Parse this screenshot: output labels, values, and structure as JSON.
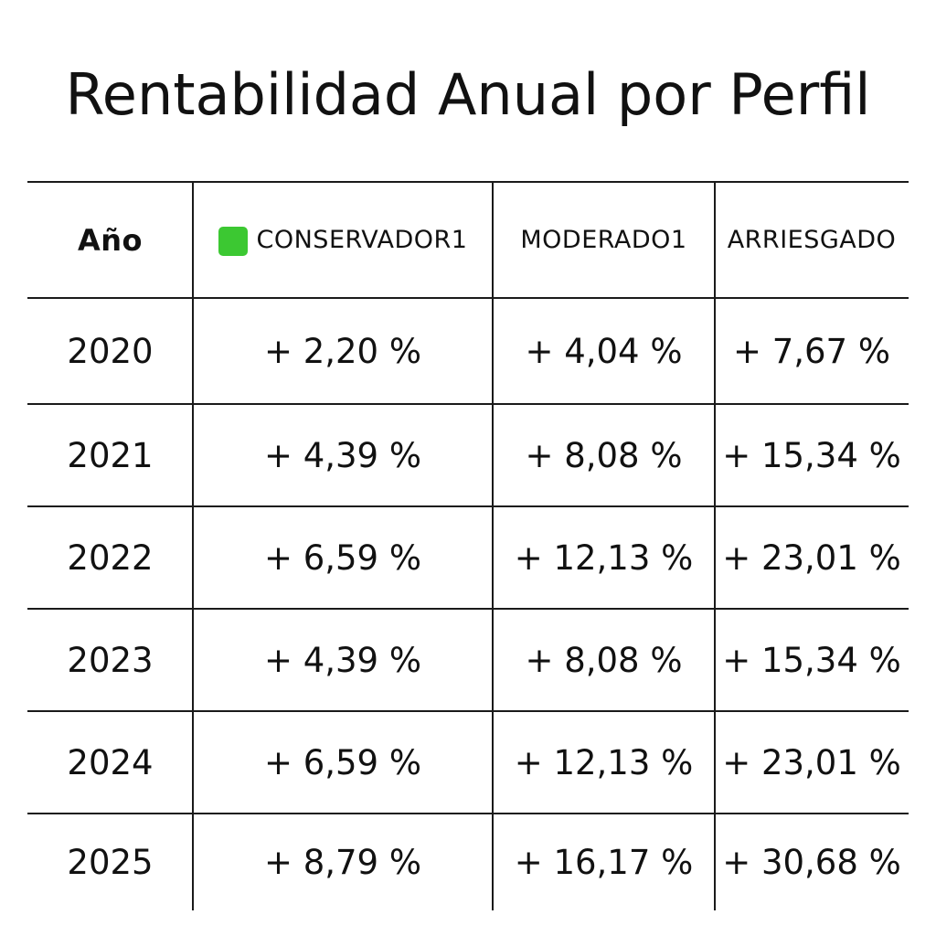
{
  "title": "Rentabilidad Anual por Perfil",
  "colors": {
    "conservador_swatch": "#3cc832",
    "grid": "#1a1a1a",
    "background": "#ffffff",
    "text": "#111111"
  },
  "chart_data": {
    "type": "table",
    "title": "Rentabilidad Anual por Perfil",
    "columns": [
      "Año",
      "CONSERVADOR1",
      "MODERADO1",
      "ARRIESGADO"
    ],
    "rows": [
      [
        "2020",
        "+ 2,20 %",
        "+ 4,04 %",
        "+ 7,67 %"
      ],
      [
        "2021",
        "+ 4,39 %",
        "+ 8,08 %",
        "+ 15,34 %"
      ],
      [
        "2022",
        "+ 6,59 %",
        "+ 12,13 %",
        "+ 23,01 %"
      ],
      [
        "2023",
        "+ 4,39 %",
        "+ 8,08 %",
        "+ 15,34 %"
      ],
      [
        "2024",
        "+ 6,59 %",
        "+ 12,13 %",
        "+ 23,01 %"
      ],
      [
        "2025",
        "+ 8,79 %",
        "+ 16,17 %",
        "+ 30,68 %"
      ]
    ],
    "series": [
      {
        "name": "CONSERVADOR1",
        "values": [
          2.2,
          4.39,
          6.59,
          4.39,
          6.59,
          8.79
        ]
      },
      {
        "name": "MODERADO1",
        "values": [
          4.04,
          8.08,
          12.13,
          8.08,
          12.13,
          16.17
        ]
      },
      {
        "name": "ARRIESGADO",
        "values": [
          7.67,
          15.34,
          23.01,
          15.34,
          23.01,
          30.68
        ]
      }
    ],
    "x": [
      "2020",
      "2021",
      "2022",
      "2023",
      "2024",
      "2025"
    ],
    "unit": "%"
  }
}
